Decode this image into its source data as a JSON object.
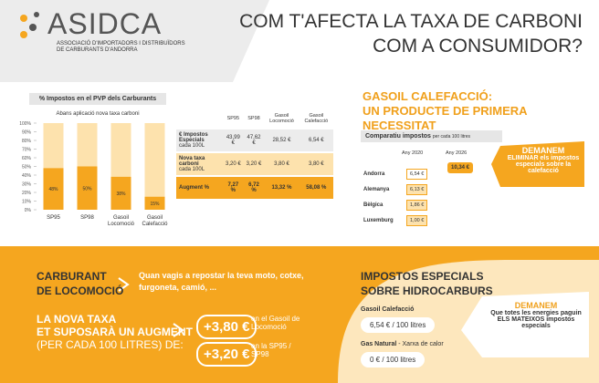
{
  "header": {
    "logo": "ASIDCA",
    "org": [
      "ASSOCIACIÓ D'IMPORTADORS I DISTRIBUÏDORS",
      "DE CARBURANTS D'ANDORRA"
    ],
    "title": [
      "COM T'AFECTA LA TAXA DE CARBONI",
      "COM A CONSUMIDOR?"
    ]
  },
  "chart": {
    "type": "bar",
    "title": "% Impostos en el PVP dels Carburants",
    "subtitle": "Abans aplicació nova taxa carboni",
    "categories": [
      "SP95",
      "SP98",
      "Gasoil Locomoció",
      "Gasoil Calefacció"
    ],
    "values": [
      48,
      50,
      38,
      15
    ],
    "value_labels": [
      "48%",
      "50%",
      "38%",
      "15%"
    ],
    "color": "#f5a61f",
    "background_color": "#fde2ad",
    "ylim": [
      0,
      100
    ],
    "yticks": [
      {
        "value": 0,
        "label": "0%"
      },
      {
        "value": 10,
        "label": "10%"
      },
      {
        "value": 20,
        "label": "20%"
      },
      {
        "value": 30,
        "label": "30%"
      },
      {
        "value": 40,
        "label": "40%"
      },
      {
        "value": 50,
        "label": "50%"
      },
      {
        "value": 60,
        "label": "60%"
      },
      {
        "value": 70,
        "label": "70%"
      },
      {
        "value": 80,
        "label": "80%"
      },
      {
        "value": 90,
        "label": "90%"
      },
      {
        "value": 100,
        "label": "100%"
      }
    ]
  },
  "table": {
    "columns": [
      "SP95",
      "SP98",
      "Gasoil Locomoció",
      "Gasoil Calefacció"
    ],
    "rows": [
      {
        "label": "€ Impostos Especials",
        "sub": "cada 100L",
        "cells": [
          "43,99 €",
          "47,62 €",
          "28,52 €",
          "6,54 €"
        ]
      },
      {
        "label": "Nova taxa carboni",
        "sub": "cada 100L",
        "cells": [
          "3,20 €",
          "3,20 €",
          "3,80 €",
          "3,80 €"
        ]
      },
      {
        "label": "Augment %",
        "cells": [
          "7,27 %",
          "6,72 %",
          "13,32 %",
          "58,08 %"
        ]
      }
    ]
  },
  "heating": {
    "title": [
      "GASOIL CALEFACCIÓ:",
      "UN PRODUCTE DE PRIMERA NECESSITAT"
    ],
    "compare_title": "Comparatiu impostos",
    "compare_sub": "per cada 100 litres",
    "columns": [
      "Any 2020",
      "Any 2026"
    ],
    "andorra_2026": "10,34 €",
    "rows": [
      {
        "country": "Andorra",
        "value": "6,54 €"
      },
      {
        "country": "Alemanya",
        "value": "6,13 €"
      },
      {
        "country": "Bèlgica",
        "value": "1,86 €"
      },
      {
        "country": "Luxemburg",
        "value": "1,00 €"
      }
    ],
    "ask": {
      "title": "DEMANEM",
      "text": "ELIMINAR els impostos especials sobre la calefacció"
    }
  },
  "fuel": {
    "title": [
      "CARBURANT",
      "DE LOCOMOCIÓ"
    ],
    "note": "Quan vagis a repostar la teva moto, cotxe, furgoneta, camió, ...",
    "increase": [
      "LA NOVA TAXA",
      "ET SUPOSARÀ UN AUGMENT",
      "(PER CADA 100 LITRES) DE:"
    ],
    "items": [
      {
        "amount": "+3,80 €",
        "text": "en el Gasoil de Locomoció"
      },
      {
        "amount": "+3,20 €",
        "text": "en la SP95 / SP98"
      }
    ]
  },
  "taxes": {
    "title": [
      "IMPOSTOS ESPECIALS",
      "SOBRE HIDROCARBURS"
    ],
    "items": [
      {
        "name": "Gasoil Calefacció",
        "value": "6,54 € / 100 litres"
      },
      {
        "name": "Gas Natural",
        "detail": " - Xarxa de calor",
        "value": "0 € / 100 litres"
      }
    ],
    "ask": {
      "title": "DEMANEM",
      "text": "Que totes les energies paguin ELS MATEIXOS impostos especials"
    }
  }
}
